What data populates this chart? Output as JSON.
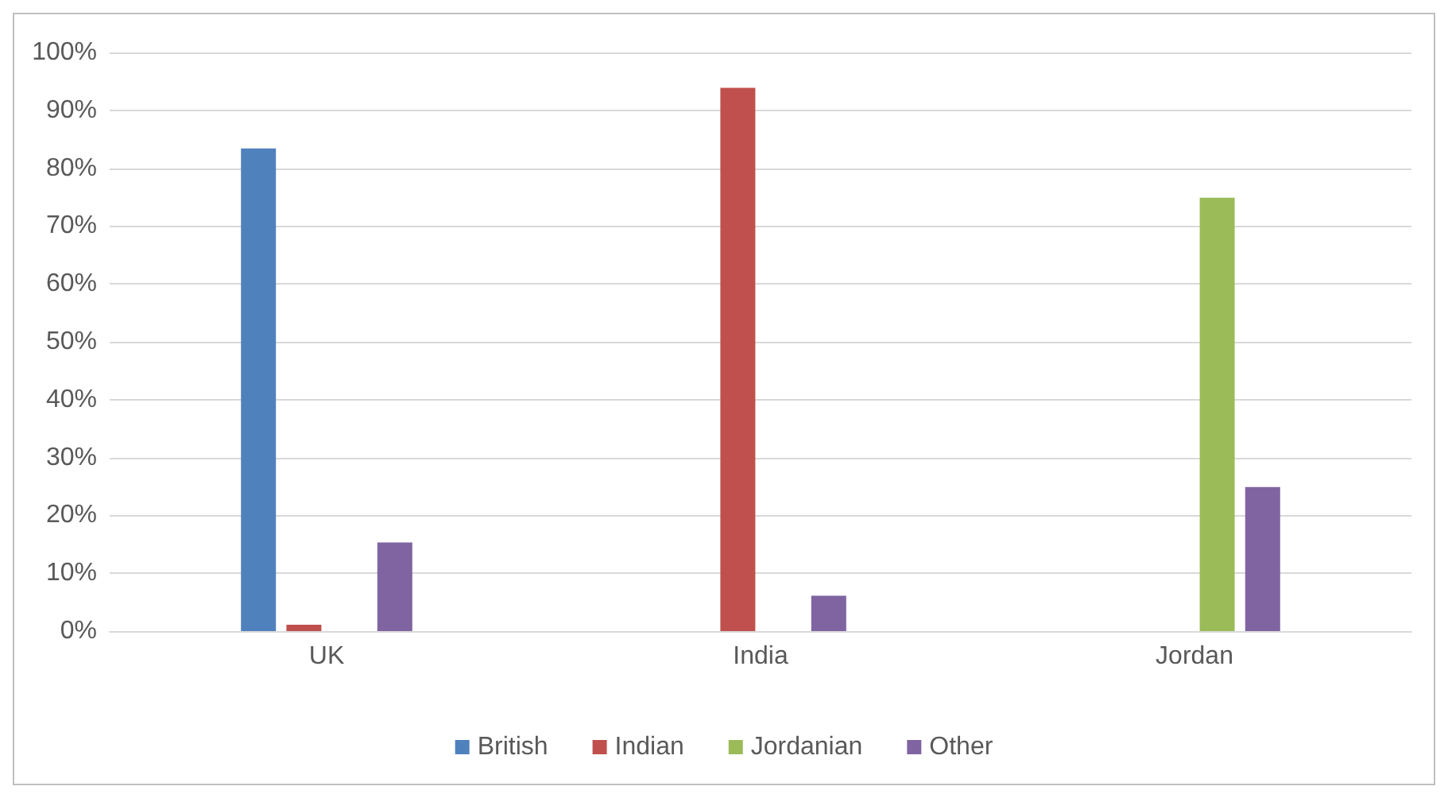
{
  "chart_data": {
    "type": "bar",
    "categories": [
      "UK",
      "India",
      "Jordan"
    ],
    "series": [
      {
        "name": "British",
        "color": "#4f81bd",
        "values": [
          83.4,
          0,
          0
        ]
      },
      {
        "name": "Indian",
        "color": "#c0504d",
        "values": [
          1.1,
          93.9,
          0
        ]
      },
      {
        "name": "Jordanian",
        "color": "#9bbb59",
        "values": [
          0,
          0,
          74.9
        ]
      },
      {
        "name": "Other",
        "color": "#8064a2",
        "values": [
          15.3,
          6.1,
          24.9
        ]
      }
    ],
    "ylim": [
      0,
      100
    ],
    "yticks": [
      {
        "value": 0,
        "label": "0%"
      },
      {
        "value": 10,
        "label": "10%"
      },
      {
        "value": 20,
        "label": "20%"
      },
      {
        "value": 30,
        "label": "30%"
      },
      {
        "value": 40,
        "label": "40%"
      },
      {
        "value": 50,
        "label": "50%"
      },
      {
        "value": 60,
        "label": "60%"
      },
      {
        "value": 70,
        "label": "70%"
      },
      {
        "value": 80,
        "label": "80%"
      },
      {
        "value": 90,
        "label": "90%"
      },
      {
        "value": 100,
        "label": "100%"
      }
    ],
    "grid": "y",
    "legend": "bottom"
  }
}
